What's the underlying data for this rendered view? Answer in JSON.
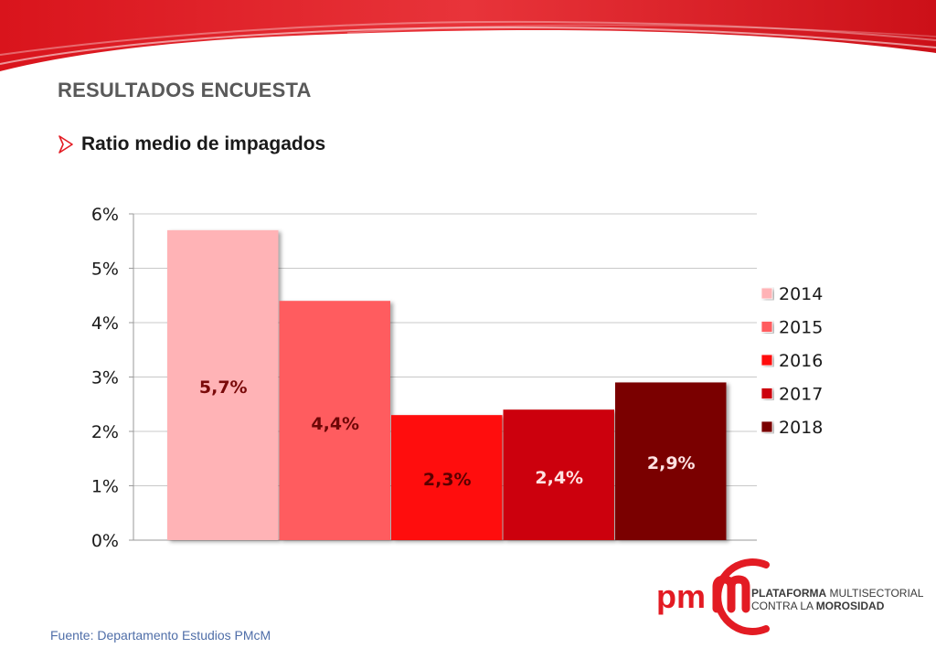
{
  "header": {
    "title": "RESULTADOS ENCUESTA",
    "subtitle": "Ratio medio de impagados"
  },
  "footer": {
    "source": "Fuente: Departamento Estudios PMcM"
  },
  "logo": {
    "letters": "pm",
    "line1_bold": "PLATAFORMA",
    "line1_rest": " MULTISECTORIAL",
    "line2_rest": "CONTRA LA ",
    "line2_bold": "MOROSIDAD"
  },
  "colors": {
    "brand": "#e31b23",
    "banner_dark": "#d9141c",
    "banner_light": "#f25a5a"
  },
  "chart_data": {
    "type": "bar",
    "title": "",
    "xlabel": "",
    "ylabel": "",
    "ylim": [
      0,
      6
    ],
    "yticks": [
      0,
      1,
      2,
      3,
      4,
      5,
      6
    ],
    "ytick_labels": [
      "0%",
      "1%",
      "2%",
      "3%",
      "4%",
      "5%",
      "6%"
    ],
    "grid": true,
    "legend_position": "right",
    "series": [
      {
        "name": "2014",
        "value": 5.7,
        "label": "5,7%",
        "color": "#ffb3b6",
        "label_color": "#7a0a0a"
      },
      {
        "name": "2015",
        "value": 4.4,
        "label": "4,4%",
        "color": "#ff5c5f",
        "label_color": "#6e0707"
      },
      {
        "name": "2016",
        "value": 2.3,
        "label": "2,3%",
        "color": "#ff0a0a",
        "label_color": "#5a0000"
      },
      {
        "name": "2017",
        "value": 2.4,
        "label": "2,4%",
        "color": "#cc0508",
        "label_color": "#ffe2e2"
      },
      {
        "name": "2018",
        "value": 2.9,
        "label": "2,9%",
        "color": "#7a0204",
        "label_color": "#ffe2e2"
      }
    ]
  }
}
